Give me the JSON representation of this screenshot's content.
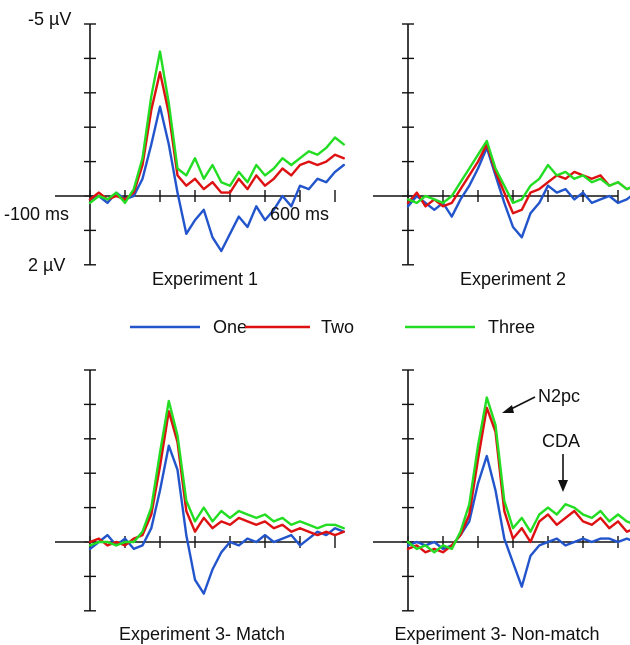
{
  "colors": {
    "One": "#2255cc",
    "Two": "#dd1111",
    "Three": "#22dd22",
    "axis": "#111111"
  },
  "axis_labels": {
    "y_top": "-5 µV",
    "y_bottom": "2 µV",
    "x_left": "-100 ms",
    "x_right": "600 ms"
  },
  "legend": [
    "One",
    "Two",
    "Three"
  ],
  "annotations": {
    "n2pc": "N2pc",
    "cda": "CDA"
  },
  "chart_data": [
    {
      "type": "line",
      "title": "Experiment 1",
      "xlabel": "",
      "ylabel": "",
      "xlim": [
        -100,
        600
      ],
      "ylim": [
        2,
        -5
      ],
      "x": [
        -100,
        -75,
        -50,
        -25,
        0,
        25,
        50,
        75,
        100,
        125,
        150,
        175,
        200,
        225,
        250,
        275,
        300,
        325,
        350,
        375,
        400,
        425,
        450,
        475,
        500,
        525,
        550,
        575,
        600,
        625
      ],
      "series": [
        {
          "name": "One",
          "values": [
            0.1,
            0.0,
            0.2,
            -0.1,
            0.1,
            0.0,
            -0.5,
            -1.5,
            -2.6,
            -1.5,
            -0.1,
            1.1,
            0.7,
            0.4,
            1.2,
            1.6,
            1.1,
            0.6,
            0.9,
            0.3,
            0.7,
            0.4,
            0.0,
            0.3,
            -0.3,
            -0.2,
            -0.5,
            -0.4,
            -0.7,
            -0.9
          ]
        },
        {
          "name": "Two",
          "values": [
            0.1,
            -0.1,
            0.1,
            0.0,
            0.1,
            -0.1,
            -0.9,
            -2.5,
            -3.6,
            -2.4,
            -0.6,
            -0.3,
            -0.5,
            -0.2,
            -0.4,
            -0.1,
            -0.1,
            -0.5,
            -0.2,
            -0.6,
            -0.3,
            -0.5,
            -0.8,
            -0.6,
            -0.9,
            -1.0,
            -0.9,
            -1.0,
            -1.2,
            -1.1
          ]
        },
        {
          "name": "Three",
          "values": [
            0.2,
            0.0,
            0.1,
            -0.1,
            0.2,
            -0.2,
            -1.1,
            -2.9,
            -4.2,
            -2.7,
            -0.8,
            -0.6,
            -1.1,
            -0.5,
            -0.9,
            -0.4,
            -0.3,
            -0.7,
            -0.4,
            -0.9,
            -0.6,
            -0.8,
            -1.1,
            -0.9,
            -1.1,
            -1.3,
            -1.2,
            -1.4,
            -1.7,
            -1.5
          ]
        }
      ]
    },
    {
      "type": "line",
      "title": "Experiment 2",
      "xlabel": "",
      "ylabel": "",
      "xlim": [
        -100,
        600
      ],
      "ylim": [
        2,
        -5
      ],
      "x": [
        -100,
        -75,
        -50,
        -25,
        0,
        25,
        50,
        75,
        100,
        125,
        150,
        175,
        200,
        225,
        250,
        275,
        300,
        325,
        350,
        375,
        400,
        425,
        450,
        475,
        500,
        525,
        550,
        575,
        600,
        625
      ],
      "series": [
        {
          "name": "One",
          "values": [
            0.3,
            0.0,
            0.2,
            0.4,
            0.2,
            0.6,
            0.1,
            -0.3,
            -0.8,
            -1.4,
            -0.6,
            0.2,
            0.9,
            1.2,
            0.5,
            0.2,
            -0.3,
            -0.1,
            -0.2,
            0.1,
            -0.1,
            0.2,
            0.1,
            0.0,
            0.2,
            0.1,
            -0.1,
            0.0,
            0.1,
            0.0
          ]
        },
        {
          "name": "Two",
          "values": [
            0.2,
            -0.1,
            0.3,
            0.1,
            0.3,
            0.2,
            -0.2,
            -0.6,
            -1.0,
            -1.5,
            -0.7,
            -0.1,
            0.5,
            0.4,
            -0.1,
            -0.2,
            -0.4,
            -0.6,
            -0.5,
            -0.7,
            -0.6,
            -0.5,
            -0.6,
            -0.3,
            -0.4,
            -0.2,
            -0.3,
            -0.2,
            -0.3,
            -0.2
          ]
        },
        {
          "name": "Three",
          "values": [
            0.1,
            0.2,
            0.0,
            0.1,
            0.2,
            0.0,
            -0.4,
            -0.8,
            -1.2,
            -1.6,
            -0.8,
            -0.3,
            0.2,
            0.1,
            -0.3,
            -0.5,
            -0.9,
            -0.6,
            -0.7,
            -0.5,
            -0.6,
            -0.4,
            -0.5,
            -0.3,
            -0.4,
            -0.2,
            -0.3,
            -0.2,
            -0.1,
            -0.2
          ]
        }
      ]
    },
    {
      "type": "line",
      "title": "Experiment 3- Match",
      "xlabel": "",
      "ylabel": "",
      "xlim": [
        -100,
        600
      ],
      "ylim": [
        2,
        -5
      ],
      "x": [
        -100,
        -75,
        -50,
        -25,
        0,
        25,
        50,
        75,
        100,
        125,
        150,
        175,
        200,
        225,
        250,
        275,
        300,
        325,
        350,
        375,
        400,
        425,
        450,
        475,
        500,
        525,
        550,
        575,
        600,
        625
      ],
      "series": [
        {
          "name": "One",
          "values": [
            0.2,
            0.0,
            -0.2,
            0.1,
            -0.1,
            0.2,
            0.1,
            -0.4,
            -1.5,
            -2.8,
            -2.1,
            -0.2,
            1.1,
            1.5,
            0.8,
            0.3,
            0.0,
            0.1,
            -0.1,
            0.0,
            -0.2,
            0.0,
            -0.1,
            -0.2,
            0.1,
            -0.1,
            -0.3,
            -0.2,
            -0.4,
            -0.3
          ]
        },
        {
          "name": "Two",
          "values": [
            0.0,
            -0.1,
            0.1,
            0.0,
            0.1,
            -0.1,
            -0.2,
            -0.8,
            -2.2,
            -3.8,
            -2.9,
            -0.9,
            -0.3,
            -0.7,
            -0.4,
            -0.6,
            -0.5,
            -0.7,
            -0.6,
            -0.5,
            -0.6,
            -0.4,
            -0.5,
            -0.3,
            -0.4,
            -0.3,
            -0.2,
            -0.3,
            -0.2,
            -0.3
          ]
        },
        {
          "name": "Three",
          "values": [
            0.1,
            0.0,
            0.0,
            0.1,
            0.0,
            0.0,
            -0.3,
            -1.0,
            -2.6,
            -4.1,
            -3.1,
            -1.2,
            -0.6,
            -1.0,
            -0.6,
            -0.9,
            -0.7,
            -0.9,
            -0.8,
            -0.7,
            -0.8,
            -0.6,
            -0.7,
            -0.5,
            -0.6,
            -0.5,
            -0.4,
            -0.5,
            -0.5,
            -0.4
          ]
        }
      ]
    },
    {
      "type": "line",
      "title": "Experiment 3- Non-match",
      "xlabel": "",
      "ylabel": "",
      "xlim": [
        -100,
        600
      ],
      "ylim": [
        2,
        -5
      ],
      "x": [
        -100,
        -75,
        -50,
        -25,
        0,
        25,
        50,
        75,
        100,
        125,
        150,
        175,
        200,
        225,
        250,
        275,
        300,
        325,
        350,
        375,
        400,
        425,
        450,
        475,
        500,
        525,
        550,
        575,
        600,
        625
      ],
      "series": [
        {
          "name": "One",
          "values": [
            0.1,
            0.0,
            0.1,
            0.0,
            0.2,
            0.1,
            -0.2,
            -0.6,
            -1.7,
            -2.5,
            -1.5,
            -0.1,
            0.6,
            1.3,
            0.4,
            0.1,
            0.0,
            -0.1,
            0.1,
            0.0,
            -0.1,
            0.0,
            -0.1,
            -0.1,
            0.0,
            -0.1,
            0.0,
            -0.1,
            0.0,
            -0.1
          ]
        },
        {
          "name": "Two",
          "values": [
            0.2,
            0.1,
            0.3,
            0.2,
            0.3,
            0.1,
            -0.2,
            -0.8,
            -2.4,
            -3.9,
            -3.2,
            -0.9,
            -0.1,
            -0.4,
            0.0,
            -0.6,
            -0.8,
            -0.5,
            -0.7,
            -0.9,
            -0.6,
            -0.5,
            -0.7,
            -0.4,
            -0.6,
            -0.3,
            -0.4,
            -0.5,
            -0.3,
            -0.4
          ]
        },
        {
          "name": "Three",
          "values": [
            0.0,
            0.2,
            0.1,
            0.3,
            0.1,
            0.2,
            -0.3,
            -1.1,
            -2.8,
            -4.2,
            -3.4,
            -1.2,
            -0.4,
            -0.7,
            -0.3,
            -0.8,
            -1.0,
            -0.8,
            -1.1,
            -1.0,
            -0.8,
            -0.7,
            -0.9,
            -0.6,
            -0.8,
            -0.6,
            -0.5,
            -0.7,
            -0.6,
            -0.5
          ]
        }
      ]
    }
  ]
}
